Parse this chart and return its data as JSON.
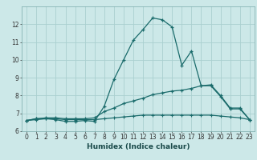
{
  "xlabel": "Humidex (Indice chaleur)",
  "xlim": [
    -0.5,
    23.5
  ],
  "ylim": [
    6,
    13
  ],
  "yticks": [
    6,
    7,
    8,
    9,
    10,
    11,
    12
  ],
  "xticks": [
    0,
    1,
    2,
    3,
    4,
    5,
    6,
    7,
    8,
    9,
    10,
    11,
    12,
    13,
    14,
    15,
    16,
    17,
    18,
    19,
    20,
    21,
    22,
    23
  ],
  "background_color": "#cce8e8",
  "grid_color": "#aacfcf",
  "line_color": "#1a6b6b",
  "line1_x": [
    0,
    1,
    2,
    3,
    4,
    5,
    6,
    7,
    8,
    9,
    10,
    11,
    12,
    13,
    14,
    15,
    16,
    17,
    18,
    19,
    20,
    21,
    22,
    23
  ],
  "line1_y": [
    6.6,
    6.7,
    6.7,
    6.65,
    6.55,
    6.55,
    6.6,
    6.55,
    7.4,
    8.9,
    10.0,
    11.1,
    11.7,
    12.35,
    12.25,
    11.85,
    9.7,
    10.5,
    8.55,
    8.55,
    7.95,
    7.25,
    7.25,
    6.65
  ],
  "line2_x": [
    0,
    1,
    2,
    3,
    4,
    5,
    6,
    7,
    8,
    9,
    10,
    11,
    12,
    13,
    14,
    15,
    16,
    17,
    18,
    19,
    20,
    21,
    22,
    23
  ],
  "line2_y": [
    6.6,
    6.7,
    6.75,
    6.75,
    6.7,
    6.7,
    6.7,
    6.75,
    7.1,
    7.3,
    7.55,
    7.7,
    7.85,
    8.05,
    8.15,
    8.25,
    8.3,
    8.4,
    8.55,
    8.6,
    8.0,
    7.3,
    7.3,
    6.65
  ],
  "line3_x": [
    0,
    1,
    2,
    3,
    4,
    5,
    6,
    7,
    8,
    9,
    10,
    11,
    12,
    13,
    14,
    15,
    16,
    17,
    18,
    19,
    20,
    21,
    22,
    23
  ],
  "line3_y": [
    6.6,
    6.65,
    6.7,
    6.7,
    6.65,
    6.65,
    6.65,
    6.65,
    6.7,
    6.75,
    6.8,
    6.85,
    6.9,
    6.9,
    6.9,
    6.9,
    6.9,
    6.9,
    6.9,
    6.9,
    6.85,
    6.8,
    6.75,
    6.65
  ],
  "tick_fontsize": 5.5,
  "xlabel_fontsize": 6.5
}
